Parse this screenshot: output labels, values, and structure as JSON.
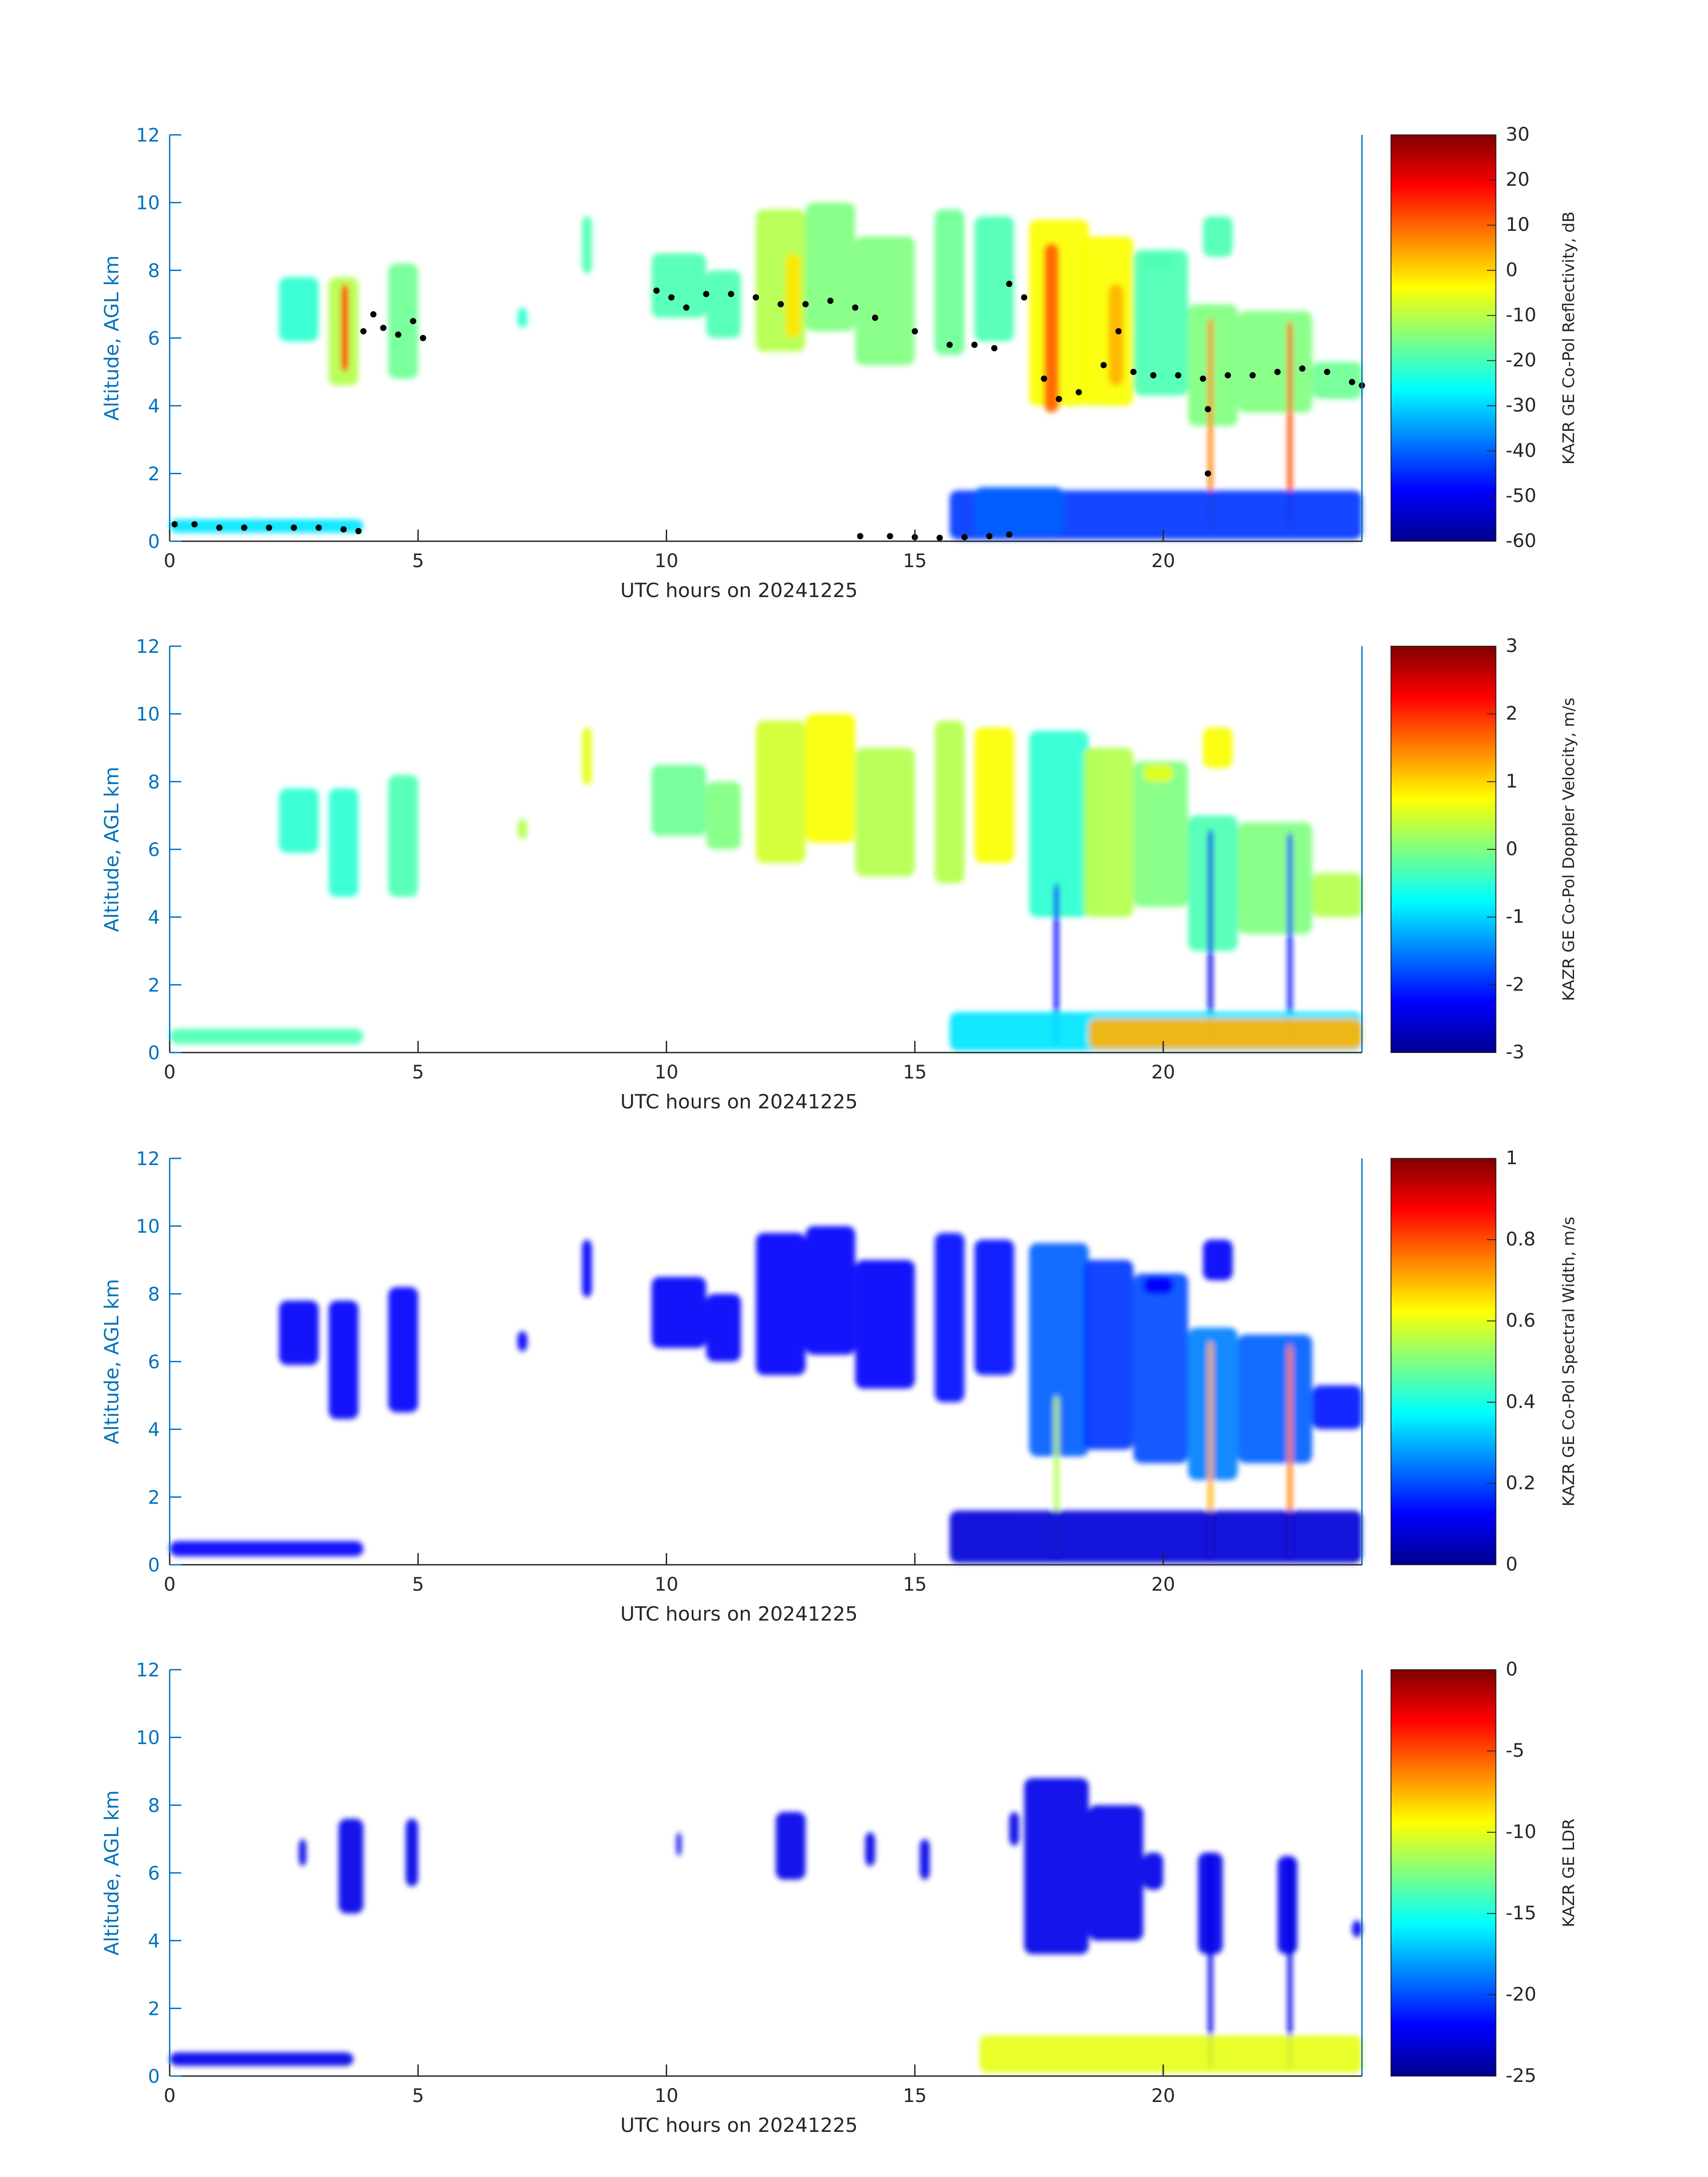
{
  "colors": {
    "axis_blue": "#0072BD",
    "axis_dark": "#262626",
    "marker": "#000000",
    "colormap_jet": [
      "#00008F",
      "#0000FF",
      "#0080FF",
      "#00FFFF",
      "#80FF80",
      "#FFFF00",
      "#FF8000",
      "#FF0000",
      "#800000"
    ]
  },
  "chart_data": [
    {
      "type": "heatmap",
      "xlabel": "UTC hours on 20241225",
      "ylabel": "Altitude, AGL km",
      "xlim": [
        0,
        24
      ],
      "ylim": [
        0,
        12
      ],
      "xticks": [
        "0",
        "5",
        "10",
        "15",
        "20"
      ],
      "yticks": [
        "0",
        "2",
        "4",
        "6",
        "8",
        "10",
        "12"
      ],
      "colorbar": {
        "label": "KAZR GE Co-Pol Reflectivity, dB",
        "range": [
          -60,
          30
        ],
        "ticks": [
          "30",
          "20",
          "10",
          "0",
          "-10",
          "-20",
          "-30",
          "-40",
          "-50",
          "-60"
        ]
      },
      "overlay_points": [
        [
          0.1,
          0.5
        ],
        [
          0.5,
          0.5
        ],
        [
          1.0,
          0.4
        ],
        [
          1.5,
          0.4
        ],
        [
          2.0,
          0.4
        ],
        [
          2.5,
          0.4
        ],
        [
          3.0,
          0.4
        ],
        [
          3.5,
          0.35
        ],
        [
          3.8,
          0.3
        ],
        [
          3.9,
          6.2
        ],
        [
          4.1,
          6.7
        ],
        [
          4.3,
          6.3
        ],
        [
          4.6,
          6.1
        ],
        [
          4.9,
          6.5
        ],
        [
          5.1,
          6.0
        ],
        [
          9.8,
          7.4
        ],
        [
          10.1,
          7.2
        ],
        [
          10.4,
          6.9
        ],
        [
          10.8,
          7.3
        ],
        [
          11.3,
          7.3
        ],
        [
          11.8,
          7.2
        ],
        [
          12.3,
          7.0
        ],
        [
          12.8,
          7.0
        ],
        [
          13.3,
          7.1
        ],
        [
          13.8,
          6.9
        ],
        [
          14.2,
          6.6
        ],
        [
          15.0,
          6.2
        ],
        [
          15.7,
          5.8
        ],
        [
          16.2,
          5.8
        ],
        [
          16.6,
          5.7
        ],
        [
          16.9,
          7.6
        ],
        [
          17.2,
          7.2
        ],
        [
          17.6,
          4.8
        ],
        [
          17.9,
          4.2
        ],
        [
          18.3,
          4.4
        ],
        [
          18.8,
          5.2
        ],
        [
          19.1,
          6.2
        ],
        [
          19.4,
          5.0
        ],
        [
          19.8,
          4.9
        ],
        [
          20.3,
          4.9
        ],
        [
          20.8,
          4.8
        ],
        [
          21.3,
          4.9
        ],
        [
          21.8,
          4.9
        ],
        [
          22.3,
          5.0
        ],
        [
          22.8,
          5.1
        ],
        [
          23.3,
          5.0
        ],
        [
          23.8,
          4.7
        ],
        [
          24.0,
          4.6
        ],
        [
          20.9,
          3.9
        ],
        [
          20.9,
          2.0
        ],
        [
          13.9,
          0.15
        ],
        [
          14.5,
          0.15
        ],
        [
          15.0,
          0.12
        ],
        [
          15.5,
          0.1
        ],
        [
          16.0,
          0.12
        ],
        [
          16.5,
          0.15
        ],
        [
          16.9,
          0.2
        ]
      ]
    },
    {
      "type": "heatmap",
      "xlabel": "UTC hours on 20241225",
      "ylabel": "Altitude, AGL km",
      "xlim": [
        0,
        24
      ],
      "ylim": [
        0,
        12
      ],
      "xticks": [
        "0",
        "5",
        "10",
        "15",
        "20"
      ],
      "yticks": [
        "0",
        "2",
        "4",
        "6",
        "8",
        "10",
        "12"
      ],
      "colorbar": {
        "label": "KAZR GE Co-Pol Doppler Velocity, m/s",
        "range": [
          -3,
          3
        ],
        "ticks": [
          "3",
          "2",
          "1",
          "0",
          "-1",
          "-2",
          "-3"
        ]
      }
    },
    {
      "type": "heatmap",
      "xlabel": "UTC hours on 20241225",
      "ylabel": "Altitude, AGL km",
      "xlim": [
        0,
        24
      ],
      "ylim": [
        0,
        12
      ],
      "xticks": [
        "0",
        "5",
        "10",
        "15",
        "20"
      ],
      "yticks": [
        "0",
        "2",
        "4",
        "6",
        "8",
        "10",
        "12"
      ],
      "colorbar": {
        "label": "KAZR GE Co-Pol Spectral Width, m/s",
        "range": [
          0,
          1
        ],
        "ticks": [
          "1",
          "0.8",
          "0.6",
          "0.4",
          "0.2",
          "0"
        ]
      }
    },
    {
      "type": "heatmap",
      "xlabel": "UTC hours on 20241225",
      "ylabel": "Altitude, AGL km",
      "xlim": [
        0,
        24
      ],
      "ylim": [
        0,
        12
      ],
      "xticks": [
        "0",
        "5",
        "10",
        "15",
        "20"
      ],
      "yticks": [
        "0",
        "2",
        "4",
        "6",
        "8",
        "10",
        "12"
      ],
      "colorbar": {
        "label": "KAZR GE LDR",
        "range": [
          -25,
          0
        ],
        "ticks": [
          "0",
          "-5",
          "-10",
          "-15",
          "-20",
          "-25"
        ]
      }
    }
  ]
}
